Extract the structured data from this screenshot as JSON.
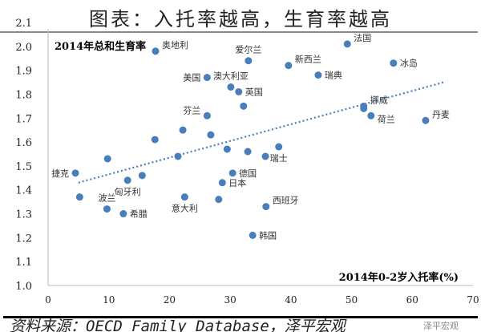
{
  "title": "图表：入托率越高，生育率越高",
  "source": "资料来源：OECD Family Database，泽平宏观",
  "watermark": "泽平宏观",
  "chart_data": {
    "type": "scatter",
    "ylabel": "2014年总和生育率",
    "xlabel": "2014年0-2岁入托率(%)",
    "xlim": [
      0,
      70
    ],
    "ylim": [
      1.0,
      2.1
    ],
    "xticks": [
      "0",
      "10",
      "20",
      "30",
      "40",
      "50",
      "60",
      "70"
    ],
    "yticks": [
      "1.0",
      "1.1",
      "1.2",
      "1.3",
      "1.4",
      "1.5",
      "1.6",
      "1.7",
      "1.8",
      "1.9",
      "2.0",
      "2.1"
    ],
    "grid": false,
    "color": "#4a7ebb",
    "trendline": {
      "style": "dotted",
      "x": [
        5.0,
        65.2
      ],
      "y": [
        1.43,
        1.85
      ]
    },
    "points": [
      {
        "label": "捷克",
        "x": 4.5,
        "y": 1.47,
        "pos": "left"
      },
      {
        "label": "",
        "x": 5.2,
        "y": 1.37
      },
      {
        "label": "",
        "x": 9.8,
        "y": 1.53
      },
      {
        "label": "波兰",
        "x": 9.7,
        "y": 1.32,
        "pos": "above"
      },
      {
        "label": "希腊",
        "x": 12.4,
        "y": 1.3
      },
      {
        "label": "匈牙利",
        "x": 13.1,
        "y": 1.44,
        "pos": "below"
      },
      {
        "label": "",
        "x": 15.5,
        "y": 1.46
      },
      {
        "label": "奥地利",
        "x": 17.7,
        "y": 1.98,
        "pos": "upright"
      },
      {
        "label": "",
        "x": 17.6,
        "y": 1.61
      },
      {
        "label": "",
        "x": 21.4,
        "y": 1.54
      },
      {
        "label": "",
        "x": 22.2,
        "y": 1.65
      },
      {
        "label": "意大利",
        "x": 22.5,
        "y": 1.37,
        "pos": "below"
      },
      {
        "label": "美国",
        "x": 26.2,
        "y": 1.87,
        "pos": "left"
      },
      {
        "label": "芬兰",
        "x": 26.2,
        "y": 1.71,
        "pos": "upleft"
      },
      {
        "label": "",
        "x": 26.8,
        "y": 1.63
      },
      {
        "label": "",
        "x": 28.1,
        "y": 1.36
      },
      {
        "label": "日本",
        "x": 28.7,
        "y": 1.43
      },
      {
        "label": "",
        "x": 29.5,
        "y": 1.57
      },
      {
        "label": "澳大利亚",
        "x": 30.1,
        "y": 1.83,
        "pos": "above"
      },
      {
        "label": "德国",
        "x": 30.4,
        "y": 1.47
      },
      {
        "label": "英国",
        "x": 31.4,
        "y": 1.81
      },
      {
        "label": "",
        "x": 32.2,
        "y": 1.75
      },
      {
        "label": "爱尔兰",
        "x": 33.0,
        "y": 1.94,
        "pos": "above"
      },
      {
        "label": "",
        "x": 32.9,
        "y": 1.56
      },
      {
        "label": "",
        "x": 35.8,
        "y": 1.54
      },
      {
        "label": "西班牙",
        "x": 35.9,
        "y": 1.33,
        "pos": "upright"
      },
      {
        "label": "韩国",
        "x": 33.7,
        "y": 1.21
      },
      {
        "label": "瑞士",
        "x": 38.0,
        "y": 1.58,
        "pos": "below"
      },
      {
        "label": "新西兰",
        "x": 39.6,
        "y": 1.92,
        "pos": "upright"
      },
      {
        "label": "瑞典",
        "x": 44.5,
        "y": 1.88
      },
      {
        "label": "法国",
        "x": 49.3,
        "y": 2.01,
        "pos": "upright"
      },
      {
        "label": "挪威",
        "x": 52.0,
        "y": 1.75,
        "pos": "upright"
      },
      {
        "label": "",
        "x": 52.0,
        "y": 1.74
      },
      {
        "label": "荷兰",
        "x": 53.2,
        "y": 1.71,
        "pos": "downright"
      },
      {
        "label": "冰岛",
        "x": 56.9,
        "y": 1.93
      },
      {
        "label": "丹麦",
        "x": 62.2,
        "y": 1.69,
        "pos": "upright"
      }
    ]
  }
}
